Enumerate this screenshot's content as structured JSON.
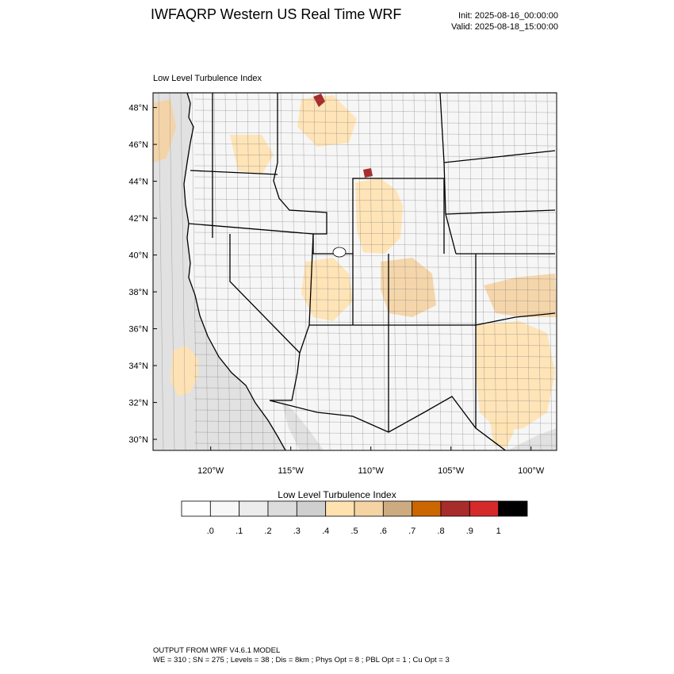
{
  "header": {
    "title": "IWFAQRP Western US Real Time WRF",
    "init": "Init: 2025-08-16_00:00:00",
    "valid": "Valid: 2025-08-18_15:00:00"
  },
  "field_label": "Low Level Turbulence Index",
  "map": {
    "lat_ticks": [
      "30°N",
      "32°N",
      "34°N",
      "36°N",
      "38°N",
      "40°N",
      "42°N",
      "44°N",
      "46°N",
      "48°N"
    ],
    "lon_ticks": [
      "120°W",
      "115°W",
      "110°W",
      "105°W",
      "100°W"
    ],
    "lat_range": [
      29.4,
      48.8
    ],
    "lon_range": [
      -123.6,
      -98.4
    ],
    "land_color": "#f6f6f6",
    "ocean_color": "#e1e1e1",
    "boundary_color": "#000000"
  },
  "colorbar": {
    "title": "Low Level Turbulence Index",
    "colors": [
      "#ffffff",
      "#f7f7f7",
      "#ececec",
      "#dcdcdc",
      "#cfcfcf",
      "#ffe2b0",
      "#f5d3a3",
      "#cdab80",
      "#cc6600",
      "#a82c2c",
      "#d42a2a",
      "#000000"
    ],
    "labels": [
      ".0",
      ".1",
      ".2",
      ".3",
      ".4",
      ".5",
      ".6",
      ".7",
      ".8",
      ".9",
      "1"
    ]
  },
  "footer": {
    "line1": "OUTPUT FROM WRF V4.6.1 MODEL",
    "line2": "WE = 310 ; SN = 275 ; Levels = 38 ; Dis = 8km ; Phys Opt = 8 ; PBL Opt = 1 ; Cu Opt = 3"
  }
}
